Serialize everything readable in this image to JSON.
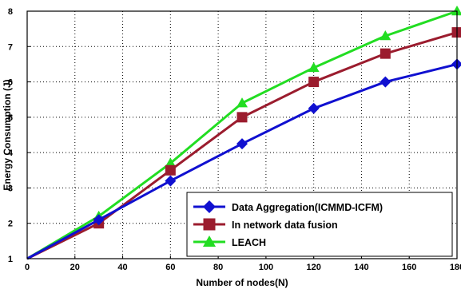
{
  "chart_data": {
    "type": "line",
    "title": "",
    "xlabel": "Number of nodes(N)",
    "ylabel": "Energy Consumption (J)",
    "xlim": [
      0,
      180
    ],
    "ylim": [
      1,
      8
    ],
    "xticks": [
      0,
      20,
      40,
      60,
      80,
      100,
      120,
      140,
      160,
      180
    ],
    "yticks": [
      1,
      2,
      3,
      4,
      5,
      6,
      7,
      8
    ],
    "grid": true,
    "legend_position": "bottom-right",
    "x": [
      0,
      30,
      60,
      90,
      120,
      150,
      180
    ],
    "series": [
      {
        "name": "Data Aggregation(ICMMD-ICFM)",
        "values": [
          1.0,
          2.1,
          3.2,
          4.25,
          5.25,
          6.0,
          6.5
        ],
        "color": "#1010d0",
        "marker": "diamond"
      },
      {
        "name": "In network data fusion",
        "values": [
          1.0,
          2.0,
          3.5,
          5.0,
          6.0,
          6.8,
          7.4
        ],
        "color": "#9b1c2e",
        "marker": "square"
      },
      {
        "name": "LEACH",
        "values": [
          1.0,
          2.2,
          3.7,
          5.4,
          6.4,
          7.3,
          8.0
        ],
        "color": "#22dd22",
        "marker": "triangle"
      }
    ]
  }
}
